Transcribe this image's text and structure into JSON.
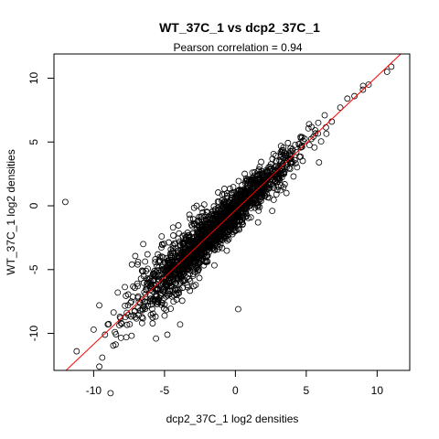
{
  "chart_data": {
    "type": "scatter",
    "title": "WT_37C_1 vs dcp2_37C_1",
    "subtitle": "Pearson correlation =  0.94",
    "xlabel": "dcp2_37C_1 log2 densities",
    "ylabel": "WT_37C_1 log2 densities",
    "xlim": [
      -12.8,
      12.3
    ],
    "ylim": [
      -12.9,
      11.9
    ],
    "x_ticks": [
      -10,
      -5,
      0,
      5,
      10
    ],
    "y_ticks": [
      -10,
      -5,
      0,
      5,
      10
    ],
    "pearson_correlation": 0.94,
    "fit_line": {
      "slope": 1.05,
      "intercept": -0.35,
      "color": "#ff0000"
    },
    "point_style": "open-circle",
    "point_color": "#000000",
    "grid": false,
    "series": [
      {
        "points": [
          [
            -12.0,
            0.3
          ],
          [
            -11.2,
            -11.4
          ],
          [
            -10.0,
            -9.7
          ],
          [
            -9.6,
            -12.6
          ],
          [
            -9.2,
            -10.1
          ],
          [
            -9.6,
            -7.8
          ],
          [
            -9.0,
            -9.3
          ],
          [
            -8.5,
            -9.9
          ],
          [
            -8.3,
            -6.8
          ],
          [
            -7.7,
            -10.3
          ],
          [
            -7.3,
            -4.6
          ],
          [
            -6.9,
            -4.6
          ],
          [
            -6.5,
            -3.0
          ],
          [
            -6.2,
            -3.8
          ],
          [
            -5.6,
            -10.4
          ],
          [
            -5.2,
            -2.4
          ],
          [
            -4.8,
            -10.1
          ],
          [
            -4.4,
            -1.7
          ],
          [
            -3.9,
            -9.3
          ],
          [
            -3.2,
            -1.0
          ],
          [
            -2.8,
            -6.2
          ],
          [
            -2.2,
            0.1
          ],
          [
            -1.6,
            -0.4
          ],
          [
            -0.3,
            1.0
          ],
          [
            0.2,
            -8.1
          ],
          [
            0.6,
            1.3
          ],
          [
            1.2,
            2.6
          ],
          [
            1.6,
            -1.3
          ],
          [
            2.2,
            2.8
          ],
          [
            2.6,
            -0.4
          ],
          [
            3.2,
            4.2
          ],
          [
            3.6,
            1.0
          ],
          [
            4.1,
            2.3
          ],
          [
            4.6,
            5.4
          ],
          [
            5.2,
            6.4
          ],
          [
            5.9,
            3.4
          ],
          [
            6.3,
            7.1
          ],
          [
            6.8,
            6.6
          ],
          [
            7.4,
            7.7
          ],
          [
            7.9,
            8.4
          ],
          [
            8.4,
            8.6
          ],
          [
            9.0,
            9.1
          ],
          [
            9.4,
            9.5
          ],
          [
            11.0,
            10.9
          ],
          [
            10.7,
            10.5
          ]
        ]
      }
    ]
  }
}
